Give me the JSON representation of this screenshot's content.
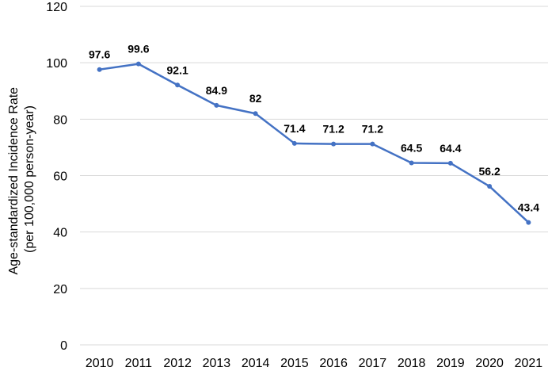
{
  "chart_data": {
    "type": "line",
    "categories": [
      "2010",
      "2011",
      "2012",
      "2013",
      "2014",
      "2015",
      "2016",
      "2017",
      "2018",
      "2019",
      "2020",
      "2021"
    ],
    "series": [
      {
        "values": [
          97.6,
          99.6,
          92.1,
          84.9,
          82,
          71.4,
          71.2,
          71.2,
          64.5,
          64.4,
          56.2,
          43.4
        ],
        "color": "#4472c4"
      }
    ],
    "data_labels": [
      "97.6",
      "99.6",
      "92.1",
      "84.9",
      "82",
      "71.4",
      "71.2",
      "71.2",
      "64.5",
      "64.4",
      "56.2",
      "43.4"
    ],
    "ylabel_line1": "Age-standardized Incidence Rate",
    "ylabel_line2": "(per 100,000 person-year)",
    "ylim": [
      0,
      120
    ],
    "yticks": [
      "0",
      "20",
      "40",
      "60",
      "80",
      "100",
      "120"
    ],
    "grid": true,
    "legend": "none"
  }
}
